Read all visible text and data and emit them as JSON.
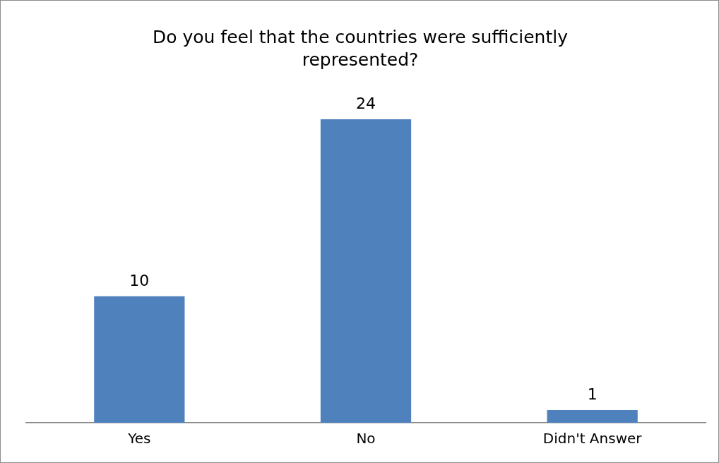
{
  "chart_data": {
    "type": "bar",
    "title": "Do you feel that the countries were sufficiently represented?",
    "categories": [
      "Yes",
      "No",
      "Didn't Answer"
    ],
    "values": [
      10,
      24,
      1
    ],
    "color": "#4f81bd",
    "data_labels": true,
    "grid": false,
    "legend": false
  }
}
